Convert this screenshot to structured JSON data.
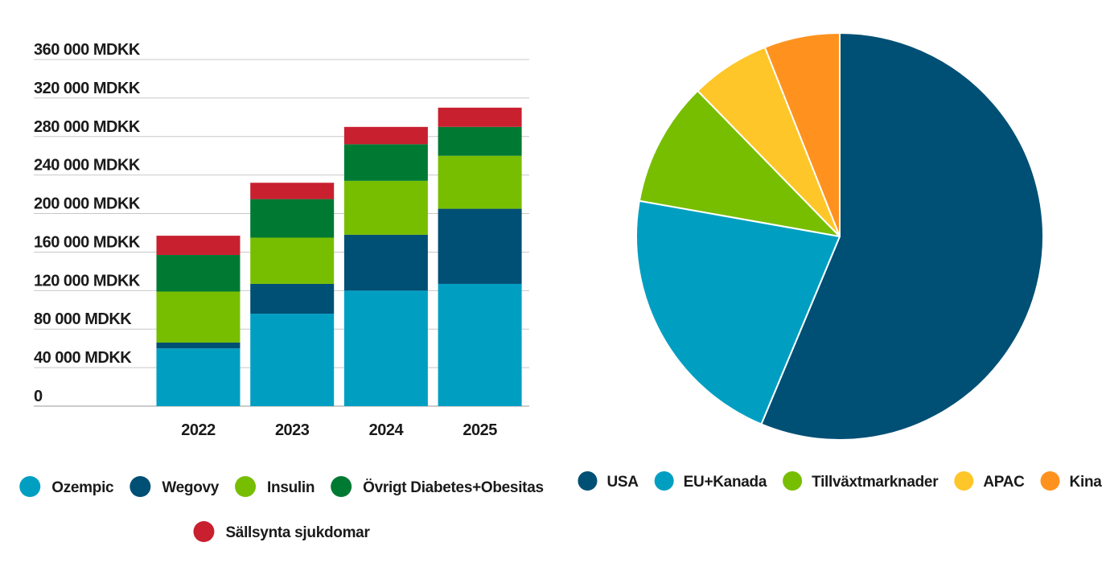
{
  "chart_data": [
    {
      "type": "bar",
      "stacked": true,
      "categories": [
        "2022",
        "2023",
        "2024",
        "2025"
      ],
      "y_tick_labels": [
        "0",
        "40 000 MDKK",
        "80 000 MDKK",
        "120 000 MDKK",
        "160 000 MDKK",
        "200 000 MDKK",
        "240 000 MDKK",
        "280 000 MDKK",
        "320 000 MDKK",
        "360 000 MDKK"
      ],
      "y_ticks": [
        0,
        40000,
        80000,
        120000,
        160000,
        200000,
        240000,
        280000,
        320000,
        360000
      ],
      "ylim": [
        0,
        360000
      ],
      "unit": "MDKK",
      "grid": true,
      "legend_position": "bottom",
      "series": [
        {
          "name": "Ozempic",
          "color": "#009fc2",
          "values": [
            60000,
            96000,
            120000,
            127000
          ]
        },
        {
          "name": "Wegovy",
          "color": "#004f74",
          "values": [
            6000,
            31000,
            58000,
            78000
          ]
        },
        {
          "name": "Insulin",
          "color": "#78be00",
          "values": [
            53000,
            48000,
            56000,
            55000
          ]
        },
        {
          "name": "Övrigt Diabetes+Obesitas",
          "color": "#007a33",
          "values": [
            38000,
            40000,
            38000,
            30000
          ]
        },
        {
          "name": "Sällsynta sjukdomar",
          "color": "#c8202f",
          "values": [
            20000,
            17000,
            18000,
            20000
          ]
        }
      ]
    },
    {
      "type": "pie",
      "legend_position": "bottom",
      "labels": [
        "USA",
        "EU+Kanada",
        "Tillväxtmarknader",
        "APAC",
        "Kina"
      ],
      "values": [
        56.3,
        21.5,
        9.9,
        6.3,
        6.0
      ],
      "unit": "%",
      "colors": [
        "#004f74",
        "#009fc2",
        "#78be00",
        "#ffc629",
        "#ff921e"
      ]
    }
  ]
}
